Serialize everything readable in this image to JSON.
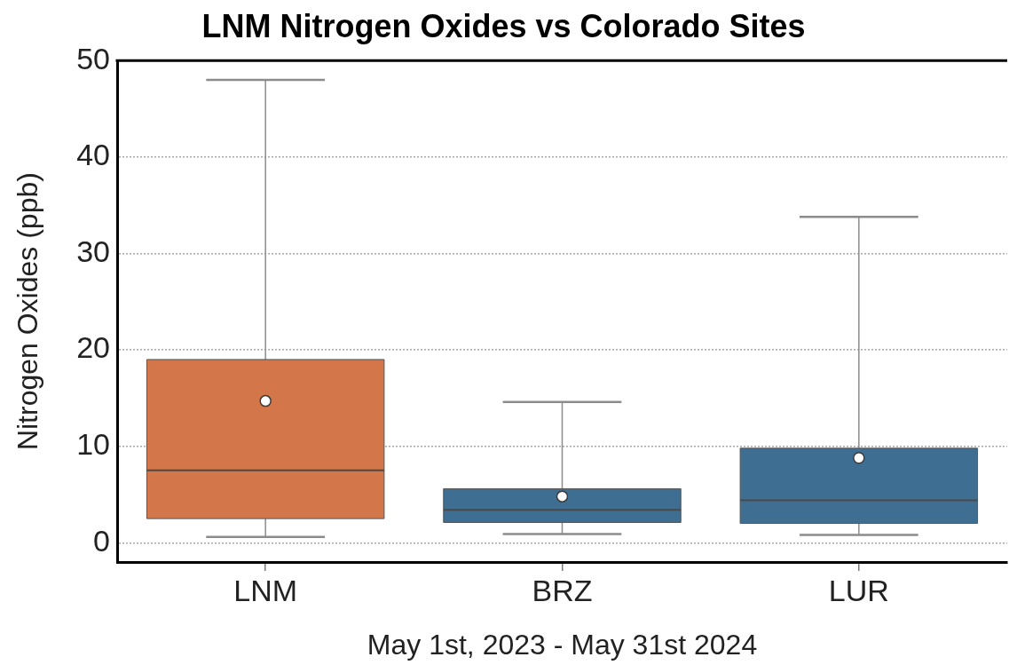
{
  "chart_data": {
    "type": "box",
    "title": "LNM Nitrogen Oxides vs Colorado Sites",
    "xlabel": "May 1st, 2023 - May 31st 2024",
    "ylabel": "Nitrogen Oxides (ppb)",
    "categories": [
      "LNM",
      "BRZ",
      "LUR"
    ],
    "boxes": [
      {
        "low": 0.6,
        "q1": 2.5,
        "median": 7.5,
        "q3": 19,
        "high": 48,
        "mean": 14.7
      },
      {
        "low": 0.9,
        "q1": 2.1,
        "median": 3.4,
        "q3": 5.6,
        "high": 14.6,
        "mean": 4.8
      },
      {
        "low": 0.8,
        "q1": 2.0,
        "median": 4.4,
        "q3": 9.8,
        "high": 33.8,
        "mean": 8.8
      }
    ],
    "colors": [
      "#d3764a",
      "#3e6e91",
      "#3e6e91"
    ],
    "ylim": [
      -2,
      50
    ],
    "yticks": [
      0,
      10,
      20,
      30,
      40,
      50
    ],
    "grid": "y"
  }
}
